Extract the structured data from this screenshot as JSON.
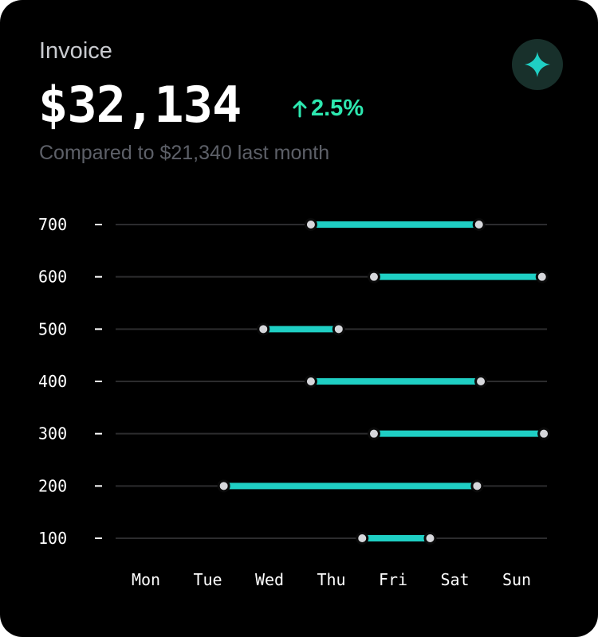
{
  "header": {
    "title": "Invoice",
    "amount": "$32,134",
    "change": "2.5%",
    "comparison": "Compared to $21,340 last month",
    "badge_icon": "sparkle-icon",
    "change_icon": "arrow-up-icon"
  },
  "colors": {
    "background": "#000000",
    "accent": "#1fcfc4",
    "positive": "#2de8b0",
    "marker": "#d6d7db",
    "grid": "#2c2c2e"
  },
  "chart_data": {
    "type": "range-bar",
    "title": "",
    "xlabel": "",
    "ylabel": "",
    "categories": [
      "Mon",
      "Tue",
      "Wed",
      "Thu",
      "Fri",
      "Sat",
      "Sun"
    ],
    "yticks": [
      700,
      600,
      500,
      400,
      300,
      200,
      100
    ],
    "ylim": [
      100,
      700
    ],
    "grid": true,
    "ranges": [
      {
        "y": 700,
        "start": 2.67,
        "end": 5.39
      },
      {
        "y": 600,
        "start": 3.69,
        "end": 6.41
      },
      {
        "y": 500,
        "start": 1.9,
        "end": 3.12
      },
      {
        "y": 400,
        "start": 2.67,
        "end": 5.42
      },
      {
        "y": 300,
        "start": 3.69,
        "end": 6.44
      },
      {
        "y": 200,
        "start": 1.26,
        "end": 5.36
      },
      {
        "y": 100,
        "start": 3.5,
        "end": 4.6
      }
    ]
  }
}
